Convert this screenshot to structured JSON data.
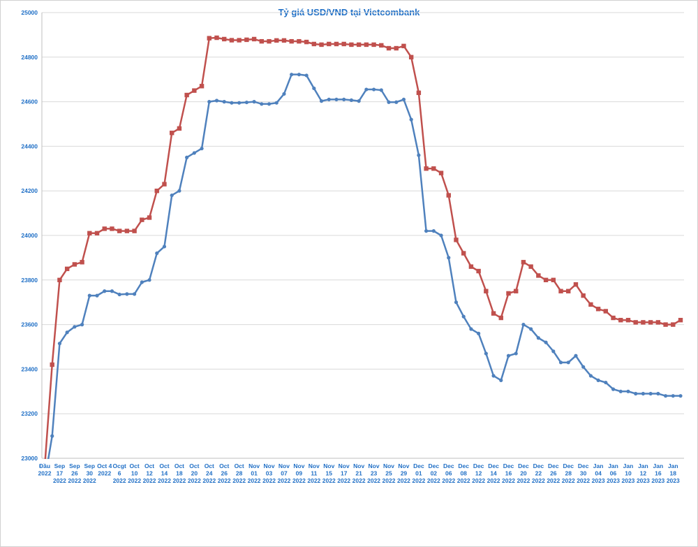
{
  "chart_data": {
    "type": "line",
    "title": "Tỷ giá USD/VND tại Vietcombank",
    "categories": [
      [
        "Đầu",
        "2022"
      ],
      null,
      [
        "Sep",
        "17",
        "2022"
      ],
      null,
      [
        "Sep",
        "26",
        "2022"
      ],
      null,
      [
        "Sep",
        "30",
        "2022"
      ],
      null,
      [
        "Oct 4",
        "2022"
      ],
      null,
      [
        "Ocgt",
        "6",
        "2022"
      ],
      null,
      [
        "Oct",
        "10",
        "2022"
      ],
      null,
      [
        "Oct",
        "12",
        "2022"
      ],
      null,
      [
        "Oct",
        "14",
        "2022"
      ],
      null,
      [
        "Oct",
        "18",
        "2022"
      ],
      null,
      [
        "Oct",
        "20",
        "2022"
      ],
      null,
      [
        "Oct",
        "24",
        "2022"
      ],
      null,
      [
        "Oct",
        "26",
        "2022"
      ],
      null,
      [
        "Oct",
        "28",
        "2022"
      ],
      null,
      [
        "Nov",
        "01",
        "2022"
      ],
      null,
      [
        "Nov",
        "03",
        "2022"
      ],
      null,
      [
        "Nov",
        "07",
        "2022"
      ],
      null,
      [
        "Nov",
        "09",
        "2022"
      ],
      null,
      [
        "Nov",
        "11",
        "2022"
      ],
      null,
      [
        "Nov",
        "15",
        "2022"
      ],
      null,
      [
        "Nov",
        "17",
        "2022"
      ],
      null,
      [
        "Nov",
        "21",
        "2022"
      ],
      null,
      [
        "Nov",
        "23",
        "2022"
      ],
      null,
      [
        "Nov",
        "25",
        "2022"
      ],
      null,
      [
        "Nov",
        "29",
        "2022"
      ],
      null,
      [
        "Dec",
        "01",
        "2022"
      ],
      null,
      [
        "Dec",
        "02",
        "2022"
      ],
      null,
      [
        "Dec",
        "06",
        "2022"
      ],
      null,
      [
        "Dec",
        "08",
        "2022"
      ],
      null,
      [
        "Dec",
        "12",
        "2022"
      ],
      null,
      [
        "Dec",
        "14",
        "2022"
      ],
      null,
      [
        "Dec",
        "16",
        "2022"
      ],
      null,
      [
        "Dec",
        "20",
        "2022"
      ],
      null,
      [
        "Dec",
        "22",
        "2022"
      ],
      null,
      [
        "Dec",
        "26",
        "2022"
      ],
      null,
      [
        "Dec",
        "28",
        "2022"
      ],
      null,
      [
        "Dec",
        "30",
        "2022"
      ],
      null,
      [
        "Jan",
        "04",
        "2023"
      ],
      null,
      [
        "Jan",
        "06",
        "2023"
      ],
      null,
      [
        "Jan",
        "10",
        "2023"
      ],
      null,
      [
        "Jan",
        "12",
        "2023"
      ],
      null,
      [
        "Jan",
        "16",
        "2023"
      ],
      null,
      [
        "Jan",
        "18",
        "2023"
      ],
      null
    ],
    "series": [
      {
        "color": "#c0504d",
        "marker": "square",
        "values": [
          22960,
          23420,
          23800,
          23850,
          23870,
          23880,
          24010,
          24010,
          24030,
          24030,
          24020,
          24020,
          24020,
          24070,
          24080,
          24200,
          24230,
          24460,
          24480,
          24630,
          24650,
          24670,
          24885,
          24887,
          24881,
          24876,
          24876,
          24878,
          24881,
          24871,
          24871,
          24875,
          24875,
          24871,
          24871,
          24868,
          24859,
          24856,
          24859,
          24859,
          24859,
          24856,
          24856,
          24856,
          24856,
          24853,
          24840,
          24840,
          24850,
          24800,
          24640,
          24300,
          24300,
          24280,
          24180,
          23980,
          23920,
          23860,
          23840,
          23750,
          23650,
          23630,
          23740,
          23750,
          23880,
          23860,
          23820,
          23800,
          23800,
          23750,
          23750,
          23780,
          23730,
          23690,
          23670,
          23660,
          23630,
          23620,
          23620,
          23610,
          23610,
          23610,
          23610,
          23600,
          23600,
          23620
        ]
      },
      {
        "color": "#4f81bd",
        "marker": "circle",
        "values": [
          22900,
          23100,
          23515,
          23565,
          23590,
          23600,
          23730,
          23730,
          23750,
          23750,
          23735,
          23737,
          23737,
          23790,
          23800,
          23920,
          23950,
          24180,
          24200,
          24350,
          24370,
          24390,
          24600,
          24605,
          24600,
          24595,
          24595,
          24597,
          24600,
          24590,
          24590,
          24595,
          24635,
          24722,
          24722,
          24718,
          24660,
          24603,
          24610,
          24610,
          24610,
          24607,
          24603,
          24655,
          24655,
          24652,
          24598,
          24598,
          24610,
          24520,
          24360,
          24020,
          24020,
          24000,
          23900,
          23700,
          23636,
          23580,
          23560,
          23470,
          23370,
          23350,
          23460,
          23470,
          23600,
          23580,
          23540,
          23520,
          23480,
          23430,
          23430,
          23460,
          23410,
          23370,
          23350,
          23340,
          23310,
          23300,
          23300,
          23290,
          23290,
          23290,
          23290,
          23280,
          23280,
          23280
        ]
      }
    ],
    "ylim": [
      23000,
      25000
    ],
    "yticks": [
      23000,
      23200,
      23400,
      23600,
      23800,
      24000,
      24200,
      24400,
      24600,
      24800,
      25000
    ],
    "grid": true
  }
}
